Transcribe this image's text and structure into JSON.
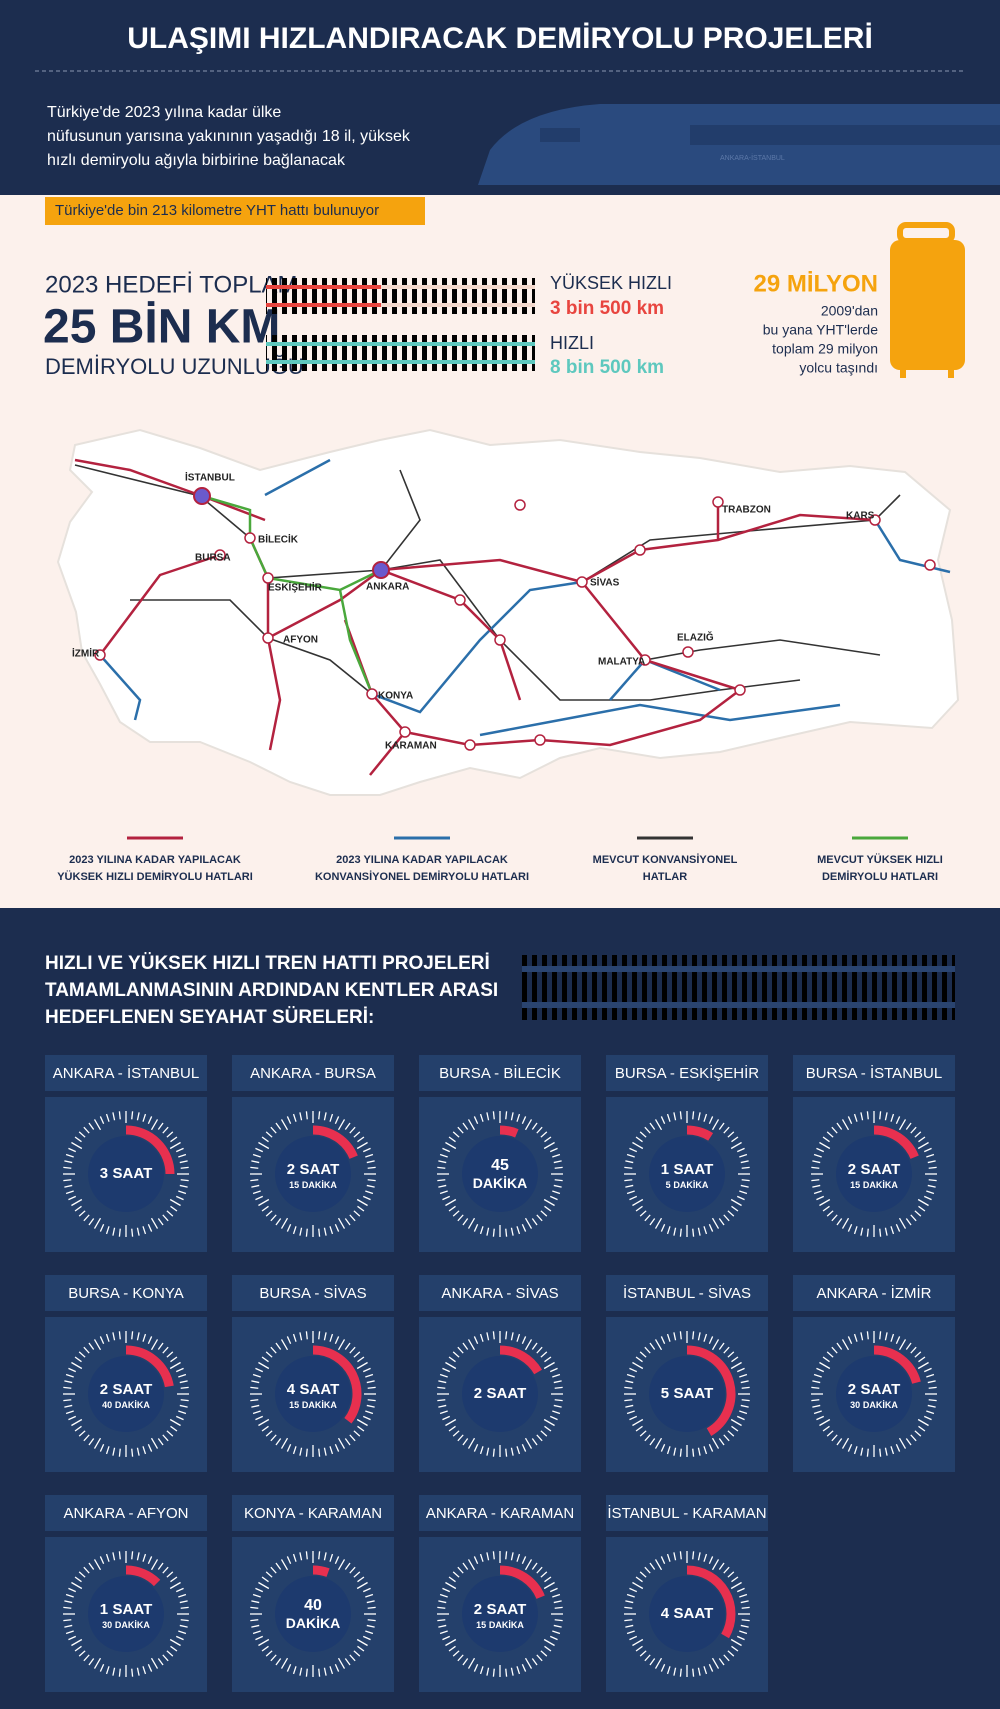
{
  "header": {
    "title": "ULAŞIMI HIZLANDIRACAK DEMİRYOLU PROJELERİ",
    "subtitle_lines": [
      "Türkiye'de 2023 yılına kadar ülke",
      "nüfusunun yarısına yakınının yaşadığı 18 il, yüksek",
      "hızlı demiryolu ağıyla birbirine bağlanacak"
    ],
    "train_label": "ANKARA-İSTANBUL"
  },
  "note": "Türkiye'de bin 213 kilometre YHT hattı bulunuyor",
  "target": {
    "line1": "2023 HEDEFİ TOPLAM",
    "big": "25 BİN KM",
    "line3": "DEMİRYOLU UZUNLUĞU",
    "high_speed_label": "YÜKSEK HIZLI",
    "high_speed_value": "3 bin 500 km",
    "fast_label": "HIZLI",
    "fast_value": "8 bin 500 km"
  },
  "passengers": {
    "headline": "29 MİLYON",
    "lines": [
      "2009'dan",
      "bu yana YHT'lerde",
      "toplam 29 milyon",
      "yolcu taşındı"
    ]
  },
  "map": {
    "cities": [
      "İSTANBUL",
      "BİLECİK",
      "BURSA",
      "ESKİŞEHİR",
      "ANKARA",
      "İZMİR",
      "AFYON",
      "KONYA",
      "KARAMAN",
      "SİVAS",
      "MALATYA",
      "ELAZIĞ",
      "TRABZON",
      "KARS"
    ],
    "legend": [
      {
        "lines": [
          "2023 YILINA KADAR YAPILACAK",
          "YÜKSEK HIZLI DEMİRYOLU HATLARI"
        ],
        "color": "#b3223f"
      },
      {
        "lines": [
          "2023 YILINA KADAR YAPILACAK",
          "KONVANSİYONEL DEMİRYOLU HATLARI"
        ],
        "color": "#2b6faa"
      },
      {
        "lines": [
          "MEVCUT KONVANSİYONEL",
          "HATLAR"
        ],
        "color": "#333333"
      },
      {
        "lines": [
          "MEVCUT YÜKSEK HIZLI",
          "DEMİRYOLU HATLARI"
        ],
        "color": "#4aa83c"
      }
    ]
  },
  "travel": {
    "heading_lines": [
      "HIZLI VE YÜKSEK HIZLI TREN HATTI PROJELERİ",
      "TAMAMLANMASININ ARDINDAN KENTLER ARASI",
      "HEDEFLENEN SEYAHAT SÜRELERİ:"
    ],
    "units": {
      "hour": "SAAT",
      "minute": "DAKİKA"
    },
    "trips": [
      {
        "route": "ANKARA - İSTANBUL",
        "hours": 3
      },
      {
        "route": "ANKARA - BURSA",
        "hours": 2,
        "minutes": 15
      },
      {
        "route": "BURSA - BİLECİK",
        "minutes": 45
      },
      {
        "route": "BURSA - ESKİŞEHİR",
        "hours": 1,
        "minutes": 5
      },
      {
        "route": "BURSA - İSTANBUL",
        "hours": 2,
        "minutes": 15
      },
      {
        "route": "BURSA  -  KONYA",
        "hours": 2,
        "minutes": 40
      },
      {
        "route": "BURSA - SİVAS",
        "hours": 4,
        "minutes": 15
      },
      {
        "route": "ANKARA - SİVAS",
        "hours": 2
      },
      {
        "route": "İSTANBUL - SİVAS",
        "hours": 5
      },
      {
        "route": "ANKARA - İZMİR",
        "hours": 2,
        "minutes": 30
      },
      {
        "route": "ANKARA - AFYON",
        "hours": 1,
        "minutes": 30
      },
      {
        "route": "KONYA - KARAMAN",
        "minutes": 40
      },
      {
        "route": "ANKARA - KARAMAN",
        "hours": 2,
        "minutes": 15
      },
      {
        "route": "İSTANBUL - KARAMAN",
        "hours": 4
      }
    ]
  }
}
